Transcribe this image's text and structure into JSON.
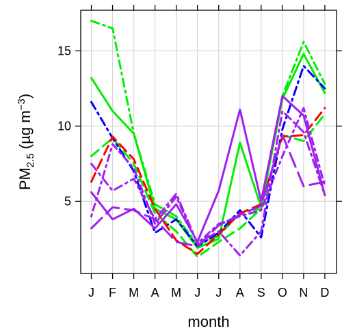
{
  "chart_data": {
    "type": "line",
    "xlabel": "month",
    "ylabel": {
      "base": "PM",
      "sub": "2.5",
      "unit_open": " (µg m",
      "unit_sup": "−3",
      "unit_close": ")"
    },
    "categories": [
      "J",
      "F",
      "M",
      "A",
      "M",
      "J",
      "J",
      "A",
      "S",
      "O",
      "N",
      "D"
    ],
    "ylim": [
      0.2,
      17.7
    ],
    "yticks": [
      5,
      10,
      15
    ],
    "grid": true,
    "series": [
      {
        "color": "#00ee00",
        "dash": "solid",
        "values": [
          13.2,
          11.0,
          9.5,
          4.5,
          3.8,
          1.9,
          2.5,
          8.9,
          4.6,
          11.8,
          14.8,
          12.2
        ]
      },
      {
        "color": "#00ee00",
        "dash": "dashdot",
        "values": [
          17.0,
          16.5,
          9.5,
          4.8,
          4.0,
          2.1,
          2.7,
          4.2,
          4.5,
          12.0,
          15.6,
          12.8
        ]
      },
      {
        "color": "#00ee00",
        "dash": "dashed",
        "values": [
          8.0,
          9.2,
          7.5,
          4.2,
          3.0,
          1.3,
          2.3,
          3.2,
          4.5,
          9.4,
          9.0,
          10.8
        ]
      },
      {
        "color": "#0000ff",
        "dash": "dashdot",
        "values": [
          11.6,
          9.2,
          7.0,
          2.9,
          3.8,
          2.0,
          2.9,
          4.4,
          2.6,
          9.8,
          14.0,
          12.5
        ]
      },
      {
        "color": "#ff0000",
        "dash": "dashed",
        "values": [
          6.3,
          9.3,
          7.8,
          4.5,
          2.4,
          1.5,
          2.8,
          4.2,
          4.8,
          9.3,
          9.4,
          11.2
        ]
      },
      {
        "color": "#a020f0",
        "dash": "solid",
        "values": [
          5.6,
          3.8,
          4.5,
          3.2,
          4.8,
          2.3,
          5.7,
          11.1,
          5.0,
          12.0,
          10.7,
          5.4
        ]
      },
      {
        "color": "#a020f0",
        "dash": "longdash",
        "values": [
          3.2,
          4.6,
          4.4,
          3.8,
          2.3,
          2.0,
          3.4,
          4.1,
          4.7,
          9.4,
          6.0,
          6.3
        ]
      },
      {
        "color": "#a020f0",
        "dash": "dashdot",
        "values": [
          7.5,
          5.7,
          6.5,
          3.8,
          5.5,
          2.2,
          3.0,
          1.4,
          3.0,
          11.0,
          9.6,
          5.4
        ]
      },
      {
        "color": "#a020f0",
        "dash": "dotdash",
        "values": [
          4.0,
          8.8,
          7.2,
          3.5,
          5.3,
          2.2,
          3.5,
          4.0,
          4.4,
          8.0,
          11.2,
          6.0
        ]
      }
    ]
  }
}
